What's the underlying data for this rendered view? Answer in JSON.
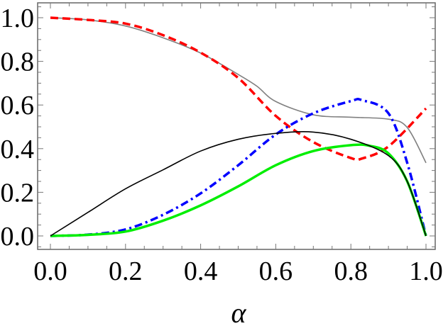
{
  "chart_data": {
    "type": "line",
    "title": "",
    "xlabel": "α",
    "ylabel": "",
    "xlim": [
      0,
      1
    ],
    "ylim": [
      -0.05,
      1.05
    ],
    "x_ticks": [
      "0.0",
      "0.2",
      "0.4",
      "0.6",
      "0.8",
      "1.0"
    ],
    "y_ticks": [
      "0.0",
      "0.2",
      "0.4",
      "0.6",
      "0.8",
      "1.0"
    ],
    "grid": false,
    "legend": "none",
    "series": [
      {
        "color": "#808080",
        "style": "solid-thin",
        "x": [
          0,
          0.1,
          0.2,
          0.3,
          0.4,
          0.5,
          0.55,
          0.6,
          0.7,
          0.8,
          0.9,
          0.95,
          1.0
        ],
        "y": [
          1.0,
          0.99,
          0.962,
          0.908,
          0.838,
          0.74,
          0.686,
          0.616,
          0.555,
          0.544,
          0.535,
          0.497,
          0.335
        ]
      },
      {
        "color": "#ff0000",
        "style": "dashed",
        "x": [
          0,
          0.1,
          0.2,
          0.3,
          0.4,
          0.5,
          0.6,
          0.7,
          0.8,
          0.83,
          0.9,
          1.0
        ],
        "y": [
          1.0,
          0.99,
          0.973,
          0.92,
          0.84,
          0.724,
          0.55,
          0.43,
          0.357,
          0.355,
          0.41,
          0.584
        ]
      },
      {
        "color": "#0000ff",
        "style": "dash-dot",
        "x": [
          0,
          0.1,
          0.2,
          0.3,
          0.4,
          0.5,
          0.6,
          0.7,
          0.8,
          0.83,
          0.9,
          0.95,
          1.0
        ],
        "y": [
          0,
          0.006,
          0.03,
          0.097,
          0.195,
          0.324,
          0.465,
          0.562,
          0.618,
          0.622,
          0.562,
          0.335,
          0
        ]
      },
      {
        "color": "#00ee00",
        "style": "solid-thick",
        "x": [
          0,
          0.1,
          0.2,
          0.3,
          0.4,
          0.5,
          0.6,
          0.7,
          0.8,
          0.85,
          0.9,
          0.95,
          1.0
        ],
        "y": [
          0,
          0.005,
          0.02,
          0.07,
          0.14,
          0.227,
          0.324,
          0.389,
          0.416,
          0.413,
          0.378,
          0.25,
          0
        ]
      },
      {
        "color": "#000000",
        "style": "solid-thin",
        "x": [
          0,
          0.1,
          0.2,
          0.3,
          0.4,
          0.5,
          0.6,
          0.7,
          0.8,
          0.9,
          0.95,
          1.0
        ],
        "y": [
          0,
          0.108,
          0.216,
          0.303,
          0.389,
          0.443,
          0.47,
          0.476,
          0.443,
          0.368,
          0.25,
          0
        ]
      }
    ]
  }
}
